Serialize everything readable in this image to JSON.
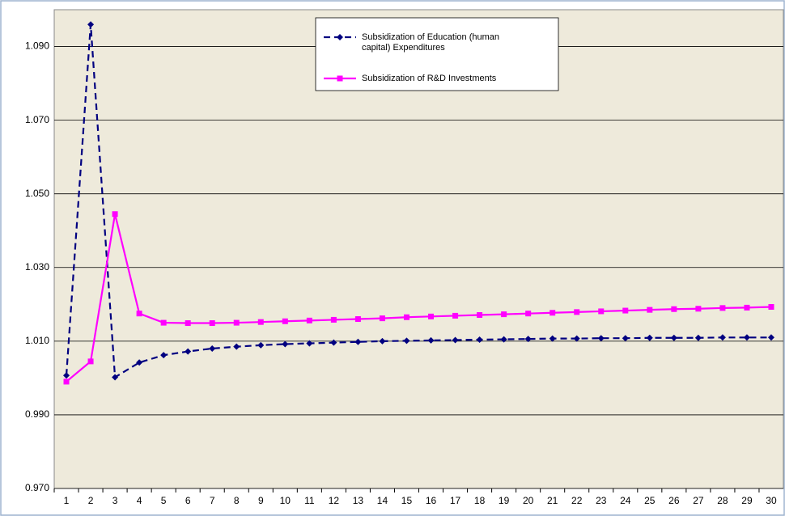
{
  "chart_data": {
    "type": "line",
    "categories": [
      "1",
      "2",
      "3",
      "4",
      "5",
      "6",
      "7",
      "8",
      "9",
      "10",
      "11",
      "12",
      "13",
      "14",
      "15",
      "16",
      "17",
      "18",
      "19",
      "20",
      "21",
      "22",
      "23",
      "24",
      "25",
      "26",
      "27",
      "28",
      "29",
      "30"
    ],
    "series": [
      {
        "name": "Subsidization of Education (human capital) Expenditures",
        "color": "#000080",
        "dashed": true,
        "marker": "diamond",
        "values": [
          1.0007,
          1.096,
          1.0002,
          1.0042,
          1.0062,
          1.0072,
          1.008,
          1.0085,
          1.0089,
          1.0092,
          1.0094,
          1.0096,
          1.0098,
          1.01,
          1.0101,
          1.0102,
          1.0103,
          1.0104,
          1.0105,
          1.0106,
          1.0107,
          1.0107,
          1.0108,
          1.0108,
          1.0109,
          1.0109,
          1.0109,
          1.011,
          1.011,
          1.011
        ]
      },
      {
        "name": "Subsidization of R&D Investments",
        "color": "#ff00ff",
        "dashed": false,
        "marker": "square",
        "values": [
          0.999,
          1.0045,
          1.0445,
          1.0175,
          1.015,
          1.0149,
          1.0149,
          1.015,
          1.0152,
          1.0154,
          1.0156,
          1.0158,
          1.016,
          1.0162,
          1.0165,
          1.0167,
          1.0169,
          1.0171,
          1.0173,
          1.0175,
          1.0177,
          1.0179,
          1.0181,
          1.0183,
          1.0185,
          1.0187,
          1.0188,
          1.019,
          1.0191,
          1.0193
        ]
      }
    ],
    "ylim": [
      0.97,
      1.1
    ],
    "yticks": [
      {
        "value": 0.97,
        "label": "0.970"
      },
      {
        "value": 0.99,
        "label": "0.990"
      },
      {
        "value": 1.01,
        "label": "1.010"
      },
      {
        "value": 1.03,
        "label": "1.030"
      },
      {
        "value": 1.05,
        "label": "1.050"
      },
      {
        "value": 1.07,
        "label": "1.070"
      },
      {
        "value": 1.09,
        "label": "1.090"
      }
    ],
    "grid": true,
    "legend": "top"
  }
}
